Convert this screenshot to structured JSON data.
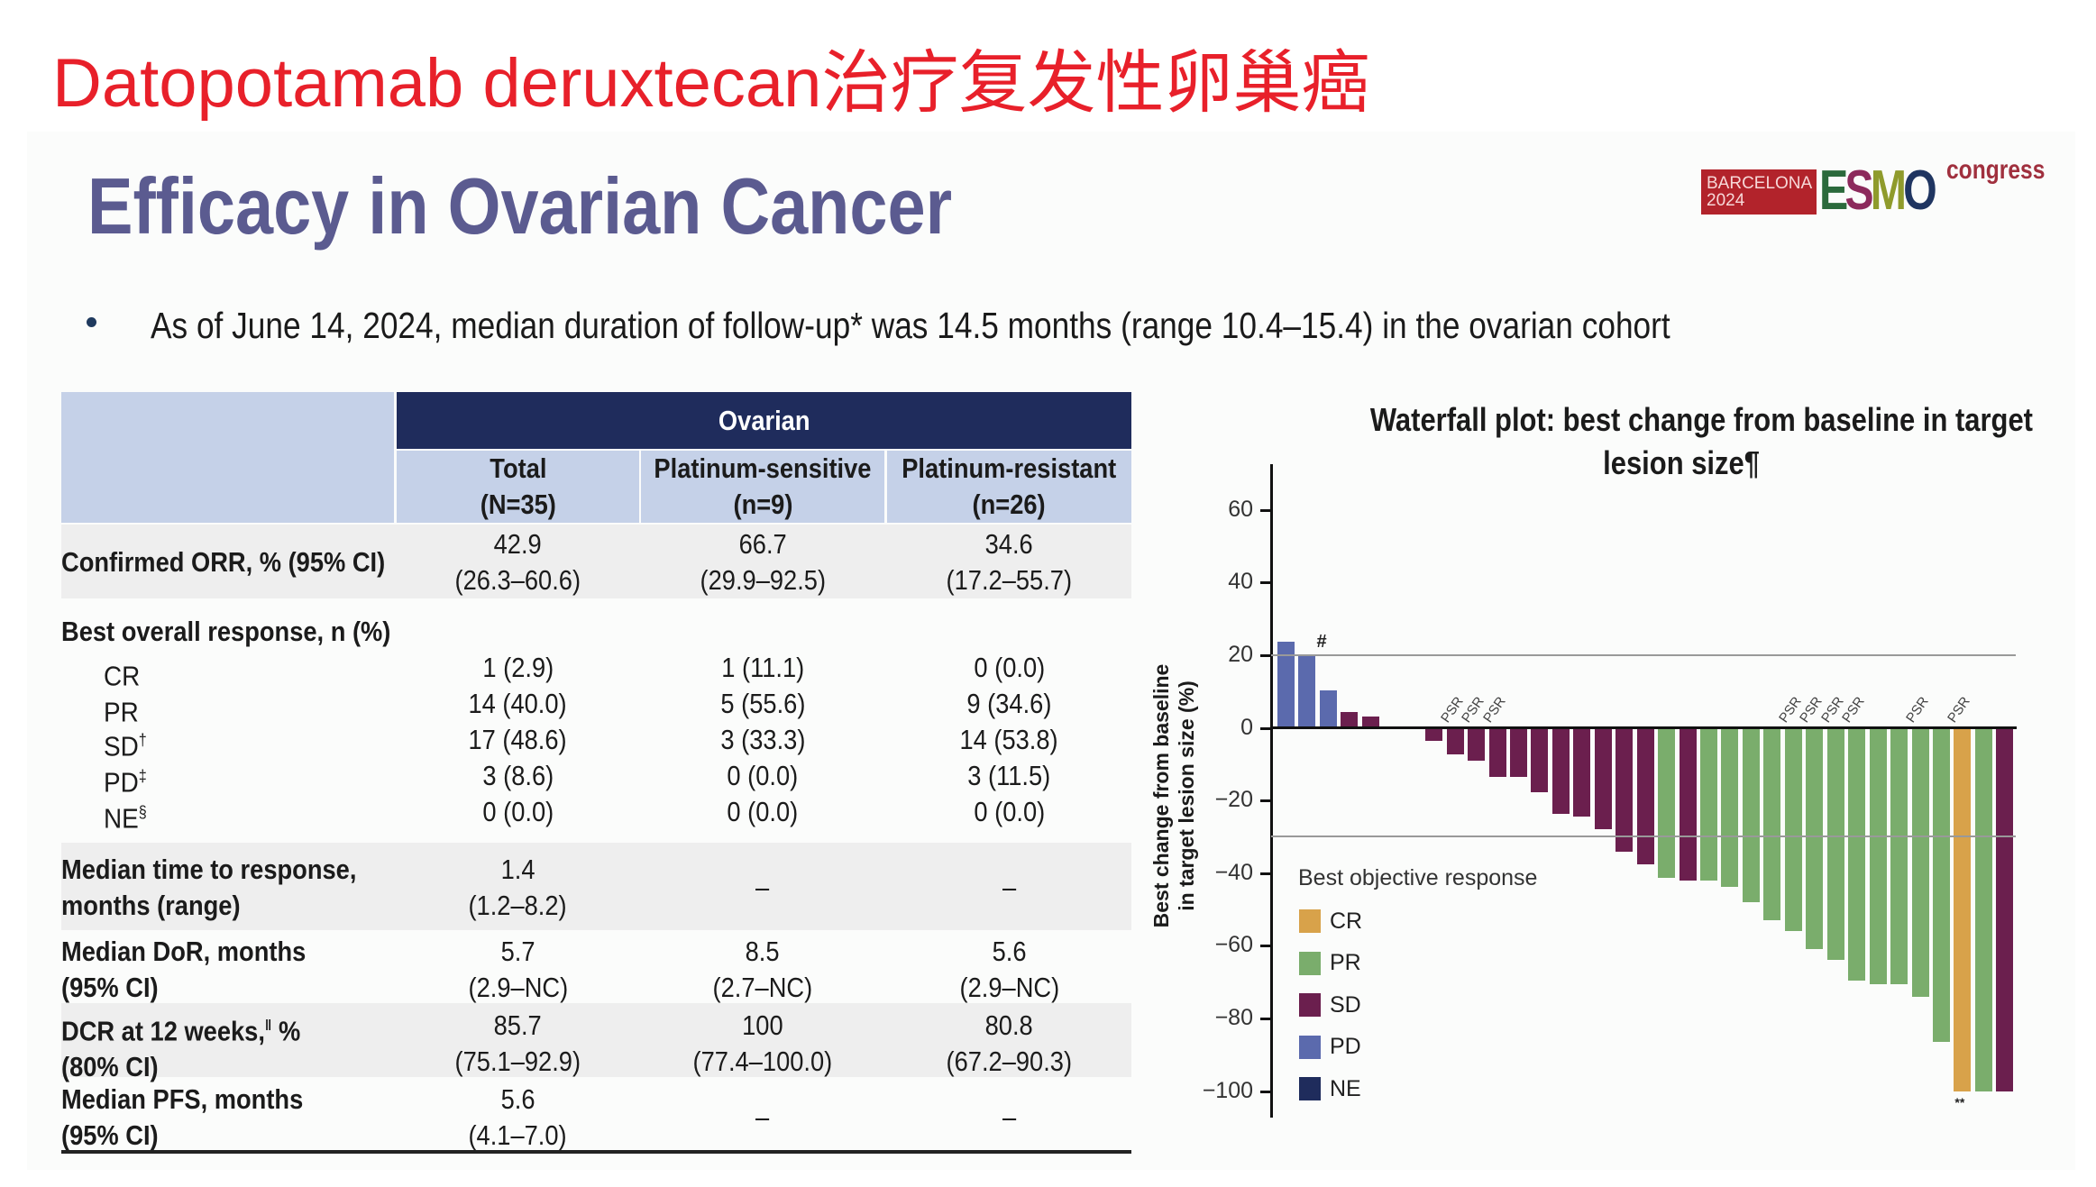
{
  "top_title": "Datopotamab deruxtecan治疗复发性卵巢癌",
  "slide": {
    "title": "Efficacy in Ovarian Cancer",
    "logo": {
      "city": "BARCELONA",
      "year": "2024",
      "brand": [
        "E",
        "S",
        "M",
        "O"
      ],
      "suffix": "congress"
    },
    "bullet": "As of June 14, 2024, median duration of follow-up* was 14.5 months (range 10.4–15.4) in the ovarian cohort"
  },
  "table": {
    "group_header": "Ovarian",
    "columns": [
      {
        "name": "Total",
        "n": "(N=35)"
      },
      {
        "name": "Platinum-sensitive",
        "n": "(n=9)"
      },
      {
        "name": "Platinum-resistant",
        "n": "(n=26)"
      }
    ],
    "orr": {
      "label": "Confirmed ORR, % (95% CI)",
      "values": [
        [
          "42.9",
          "(26.3–60.6)"
        ],
        [
          "66.7",
          "(29.9–92.5)"
        ],
        [
          "34.6",
          "(17.2–55.7)"
        ]
      ]
    },
    "bor": {
      "label": "Best overall response, n (%)",
      "rows": [
        {
          "label": "CR",
          "sup": "",
          "values": [
            "1 (2.9)",
            "1 (11.1)",
            "0 (0.0)"
          ]
        },
        {
          "label": "PR",
          "sup": "",
          "values": [
            "14 (40.0)",
            "5 (55.6)",
            "9 (34.6)"
          ]
        },
        {
          "label": "SD",
          "sup": "†",
          "values": [
            "17 (48.6)",
            "3 (33.3)",
            "14 (53.8)"
          ]
        },
        {
          "label": "PD",
          "sup": "‡",
          "values": [
            "3 (8.6)",
            "0 (0.0)",
            "3 (11.5)"
          ]
        },
        {
          "label": "NE",
          "sup": "§",
          "values": [
            "0 (0.0)",
            "0 (0.0)",
            "0 (0.0)"
          ]
        }
      ]
    },
    "ttr": {
      "label1": "Median time to response,",
      "label2": "months (range)",
      "values": [
        [
          "1.4",
          "(1.2–8.2)"
        ],
        [
          "–",
          ""
        ],
        [
          "–",
          ""
        ]
      ]
    },
    "dor": {
      "label1": "Median DoR, months",
      "label2": "(95% CI)",
      "values": [
        [
          "5.7",
          "(2.9–NC)"
        ],
        [
          "8.5",
          "(2.7–NC)"
        ],
        [
          "5.6",
          "(2.9–NC)"
        ]
      ]
    },
    "dcr": {
      "label1": "DCR at 12 weeks,",
      "label1_sup": "ǁ",
      "label1_tail": " %",
      "label2": "(80% CI)",
      "values": [
        [
          "85.7",
          "(75.1–92.9)"
        ],
        [
          "100",
          "(77.4–100.0)"
        ],
        [
          "80.8",
          "(67.2–90.3)"
        ]
      ]
    },
    "pfs": {
      "label1": "Median PFS, months",
      "label2": "(95% CI)",
      "values": [
        [
          "5.6",
          "(4.1–7.0)"
        ],
        [
          "–",
          ""
        ],
        [
          "–",
          ""
        ]
      ]
    }
  },
  "chart_data": {
    "type": "bar",
    "title": "Waterfall plot: best change from baseline in target lesion size¶",
    "title_line1": "Waterfall plot: best change from baseline in target",
    "title_line2": "lesion size¶",
    "xlabel": "",
    "ylabel": "Best change from baseline in target lesion size (%)",
    "ylabel_line1": "Best change from baseline",
    "ylabel_line2": "in target lesion size (%)",
    "ylim": [
      -100,
      60
    ],
    "yticks": [
      60,
      40,
      20,
      0,
      -20,
      -40,
      -60,
      -80,
      -100
    ],
    "reference_lines": [
      20,
      -30
    ],
    "grid": false,
    "legend_title": "Best objective response",
    "legend": [
      {
        "label": "CR",
        "color": "#d8a24a"
      },
      {
        "label": "PR",
        "color": "#7aad6c"
      },
      {
        "label": "SD",
        "color": "#6b1f4e"
      },
      {
        "label": "PD",
        "color": "#5b6aad"
      },
      {
        "label": "NE",
        "color": "#1f2c5c"
      }
    ],
    "legend_position": "lower-left",
    "bars": [
      {
        "value": 23.6,
        "response": "PD",
        "note": ""
      },
      {
        "value": 20.0,
        "response": "PD",
        "note": "#"
      },
      {
        "value": 10.2,
        "response": "PD",
        "note": ""
      },
      {
        "value": 4.3,
        "response": "SD",
        "note": ""
      },
      {
        "value": 3.1,
        "response": "SD",
        "note": ""
      },
      {
        "value": null,
        "response": "",
        "note": ""
      },
      {
        "value": null,
        "response": "",
        "note": ""
      },
      {
        "value": -3.6,
        "response": "SD",
        "note": ""
      },
      {
        "value": -7.3,
        "response": "SD",
        "note": "PSR"
      },
      {
        "value": -9.1,
        "response": "SD",
        "note": "PSR"
      },
      {
        "value": -13.5,
        "response": "SD",
        "note": "PSR"
      },
      {
        "value": -13.5,
        "response": "SD",
        "note": ""
      },
      {
        "value": -17.7,
        "response": "SD",
        "note": ""
      },
      {
        "value": -23.7,
        "response": "SD",
        "note": ""
      },
      {
        "value": -24.5,
        "response": "SD",
        "note": ""
      },
      {
        "value": -28.0,
        "response": "SD",
        "note": ""
      },
      {
        "value": -34.2,
        "response": "SD",
        "note": ""
      },
      {
        "value": -37.5,
        "response": "SD",
        "note": ""
      },
      {
        "value": -41.2,
        "response": "PR",
        "note": ""
      },
      {
        "value": -42.0,
        "response": "SD",
        "note": ""
      },
      {
        "value": -42.0,
        "response": "PR",
        "note": ""
      },
      {
        "value": -43.9,
        "response": "PR",
        "note": ""
      },
      {
        "value": -48.1,
        "response": "PR",
        "note": ""
      },
      {
        "value": -53.0,
        "response": "PR",
        "note": ""
      },
      {
        "value": -56.0,
        "response": "PR",
        "note": "PSR"
      },
      {
        "value": -61.0,
        "response": "PR",
        "note": "PSR"
      },
      {
        "value": -64.0,
        "response": "PR",
        "note": "PSR"
      },
      {
        "value": -69.5,
        "response": "PR",
        "note": "PSR"
      },
      {
        "value": -70.5,
        "response": "PR",
        "note": ""
      },
      {
        "value": -70.7,
        "response": "PR",
        "note": ""
      },
      {
        "value": -74.0,
        "response": "PR",
        "note": "PSR"
      },
      {
        "value": -86.5,
        "response": "PR",
        "note": ""
      },
      {
        "value": -100.0,
        "response": "CR",
        "note": "PSR",
        "below_note": "**"
      },
      {
        "value": -100.0,
        "response": "PR",
        "note": ""
      },
      {
        "value": -100.0,
        "response": "SD",
        "note": ""
      }
    ]
  }
}
